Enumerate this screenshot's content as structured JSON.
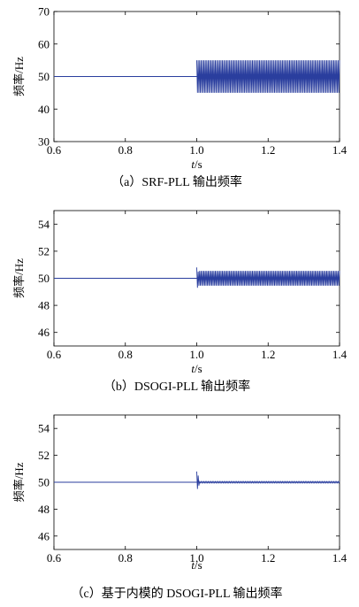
{
  "chart_data": [
    {
      "type": "line",
      "caption": "（a）SRF-PLL 输出频率",
      "xlabel_prefix": "t",
      "xlabel_suffix": "/s",
      "ylabel": "频率/Hz",
      "xlim": [
        0.6,
        1.4
      ],
      "ylim": [
        30,
        70
      ],
      "xticks": [
        "0.6",
        "0.8",
        "1.0",
        "1.2",
        "1.4"
      ],
      "yticks": [
        "30",
        "40",
        "50",
        "60",
        "70"
      ],
      "series": [
        {
          "x": [
            0.6,
            1.0
          ],
          "y": [
            50,
            50
          ]
        },
        {
          "x_start": 1.0,
          "x_end": 1.4,
          "center": 50,
          "amplitude": 5,
          "cycles": 100,
          "settle_to": null
        }
      ],
      "grid": false,
      "line_color": "#2a3e9e"
    },
    {
      "type": "line",
      "caption": "（b）DSOGI-PLL 输出频率",
      "xlabel_prefix": "t",
      "xlabel_suffix": "/s",
      "ylabel": "频率/Hz",
      "xlim": [
        0.6,
        1.4
      ],
      "ylim": [
        45,
        55
      ],
      "xticks": [
        "0.6",
        "0.8",
        "1.0",
        "1.2",
        "1.4"
      ],
      "yticks": [
        "46",
        "48",
        "50",
        "52",
        "54"
      ],
      "series": [
        {
          "x": [
            0.6,
            1.0
          ],
          "y": [
            50,
            50
          ]
        },
        {
          "x_start": 1.0,
          "x_end": 1.4,
          "center": 50,
          "amplitude": 0.55,
          "cycles": 100,
          "transient_peak": 50.8,
          "transient_dip": 49.3
        }
      ],
      "grid": false,
      "line_color": "#2a3e9e"
    },
    {
      "type": "line",
      "caption": "（c）基于内模的 DSOGI-PLL 输出频率",
      "xlabel_prefix": "t",
      "xlabel_suffix": "/s",
      "ylabel": "频率/Hz",
      "xlim": [
        0.6,
        1.4
      ],
      "ylim": [
        45,
        55
      ],
      "xticks": [
        "0.6",
        "0.8",
        "1.0",
        "1.2",
        "1.4"
      ],
      "yticks": [
        "46",
        "48",
        "50",
        "52",
        "54"
      ],
      "series": [
        {
          "x": [
            0.6,
            1.0
          ],
          "y": [
            50,
            50
          ]
        },
        {
          "x_start": 1.0,
          "x_end": 1.4,
          "center": 50,
          "amplitude": 0.05,
          "cycles": 100,
          "transient_peak": 50.8,
          "transient_dip": 49.5
        }
      ],
      "grid": false,
      "line_color": "#2a3e9e"
    }
  ]
}
